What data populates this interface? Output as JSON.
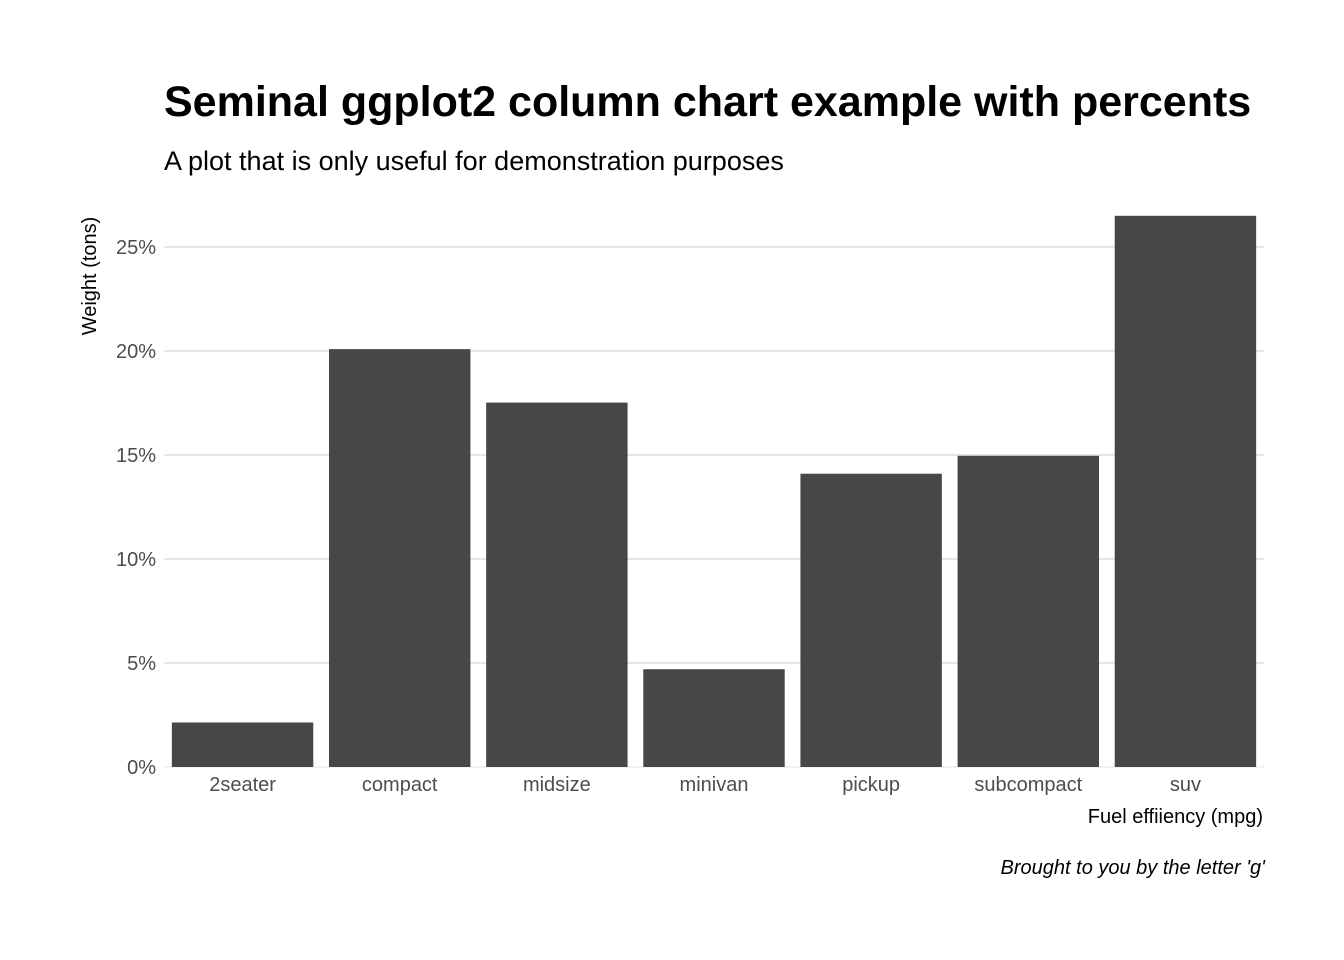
{
  "chart_data": {
    "type": "bar",
    "title": "Seminal ggplot2 column chart example with percents",
    "subtitle": "A plot that is only useful for demonstration purposes",
    "xlabel": "Fuel effiiency (mpg)",
    "ylabel": "Weight (tons)",
    "caption": "Brought to you by the letter 'g'",
    "categories": [
      "2seater",
      "compact",
      "midsize",
      "minivan",
      "pickup",
      "subcompact",
      "suv"
    ],
    "values": [
      0.0214,
      0.2009,
      0.1752,
      0.047,
      0.141,
      0.1496,
      0.265
    ],
    "ylim": [
      0,
      0.265
    ],
    "yticks": [
      0,
      0.05,
      0.1,
      0.15,
      0.2,
      0.25
    ],
    "ytick_labels": [
      "0%",
      "5%",
      "10%",
      "15%",
      "20%",
      "25%"
    ],
    "grid": "horizontal-major",
    "legend": "none",
    "bar_color": "#474747",
    "grid_color": "#cccccc"
  }
}
